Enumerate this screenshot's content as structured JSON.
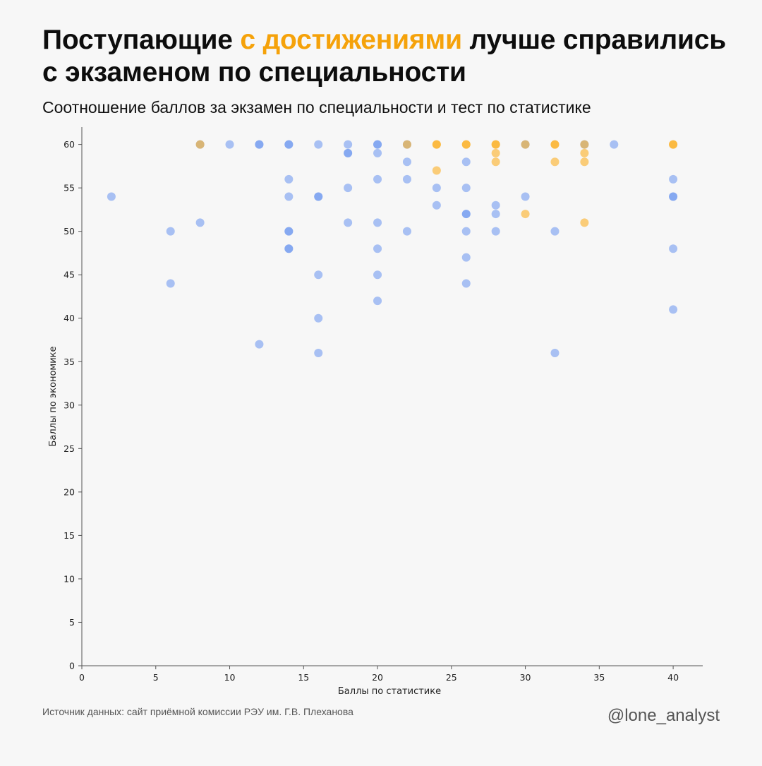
{
  "header": {
    "title_part1": "Поступающие ",
    "title_highlight": "с достижениями",
    "title_part2": " лучше справились с экзаменом по специальности",
    "subtitle": "Соотношение баллов за экзамен по специальности и тест по статистике"
  },
  "footer": {
    "source": "Источник данных: сайт приёмной комиссии РЭУ им. Г.В. Плеханова",
    "handle": "@lone_analyst"
  },
  "colors": {
    "accent": "#f5a20a",
    "series_blue": "#6f98f0",
    "series_orange": "#fbac1c",
    "text": "#0d0d0d",
    "background": "#f7f7f7"
  },
  "chart_data": {
    "type": "scatter",
    "xlabel": "Баллы по статистике",
    "ylabel": "Баллы по экономике",
    "xlim": [
      0,
      42
    ],
    "ylim": [
      0,
      62
    ],
    "xticks": [
      0,
      5,
      10,
      15,
      20,
      25,
      30,
      35,
      40
    ],
    "yticks": [
      0,
      5,
      10,
      15,
      20,
      25,
      30,
      35,
      40,
      45,
      50,
      55,
      60
    ],
    "grid": false,
    "legend": "none",
    "series": [
      {
        "color": "#6f98f0",
        "points": [
          [
            2,
            54
          ],
          [
            6,
            50
          ],
          [
            6,
            44
          ],
          [
            8,
            60
          ],
          [
            8,
            51
          ],
          [
            10,
            60
          ],
          [
            12,
            60
          ],
          [
            12,
            60
          ],
          [
            12,
            37
          ],
          [
            14,
            60
          ],
          [
            14,
            60
          ],
          [
            14,
            56
          ],
          [
            14,
            54
          ],
          [
            14,
            50
          ],
          [
            14,
            50
          ],
          [
            14,
            48
          ],
          [
            14,
            48
          ],
          [
            16,
            60
          ],
          [
            16,
            54
          ],
          [
            16,
            54
          ],
          [
            16,
            45
          ],
          [
            16,
            40
          ],
          [
            16,
            36
          ],
          [
            18,
            60
          ],
          [
            18,
            59
          ],
          [
            18,
            59
          ],
          [
            18,
            55
          ],
          [
            18,
            51
          ],
          [
            20,
            60
          ],
          [
            20,
            60
          ],
          [
            20,
            59
          ],
          [
            20,
            56
          ],
          [
            20,
            51
          ],
          [
            20,
            48
          ],
          [
            20,
            45
          ],
          [
            20,
            42
          ],
          [
            22,
            60
          ],
          [
            22,
            58
          ],
          [
            22,
            56
          ],
          [
            22,
            50
          ],
          [
            24,
            55
          ],
          [
            24,
            53
          ],
          [
            26,
            58
          ],
          [
            26,
            55
          ],
          [
            26,
            52
          ],
          [
            26,
            52
          ],
          [
            26,
            50
          ],
          [
            26,
            47
          ],
          [
            26,
            44
          ],
          [
            28,
            53
          ],
          [
            28,
            52
          ],
          [
            28,
            50
          ],
          [
            30,
            60
          ],
          [
            30,
            54
          ],
          [
            32,
            50
          ],
          [
            32,
            36
          ],
          [
            34,
            60
          ],
          [
            36,
            60
          ],
          [
            40,
            56
          ],
          [
            40,
            54
          ],
          [
            40,
            54
          ],
          [
            40,
            48
          ],
          [
            40,
            41
          ]
        ]
      },
      {
        "color": "#fbac1c",
        "points": [
          [
            8,
            60
          ],
          [
            22,
            60
          ],
          [
            24,
            60
          ],
          [
            24,
            60
          ],
          [
            24,
            57
          ],
          [
            26,
            60
          ],
          [
            26,
            60
          ],
          [
            28,
            60
          ],
          [
            28,
            60
          ],
          [
            28,
            59
          ],
          [
            28,
            58
          ],
          [
            30,
            60
          ],
          [
            30,
            52
          ],
          [
            32,
            60
          ],
          [
            32,
            60
          ],
          [
            32,
            58
          ],
          [
            34,
            60
          ],
          [
            34,
            59
          ],
          [
            34,
            58
          ],
          [
            34,
            51
          ],
          [
            40,
            60
          ],
          [
            40,
            60
          ]
        ]
      }
    ]
  }
}
